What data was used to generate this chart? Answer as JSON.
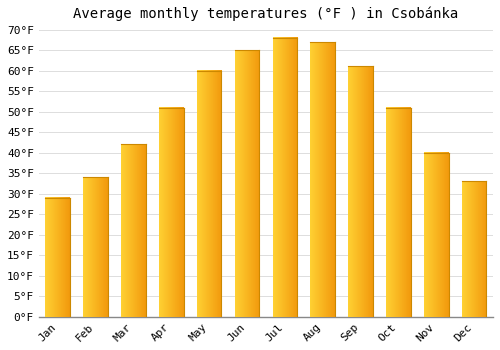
{
  "title": "Average monthly temperatures (°F ) in Csobánka",
  "months": [
    "Jan",
    "Feb",
    "Mar",
    "Apr",
    "May",
    "Jun",
    "Jul",
    "Aug",
    "Sep",
    "Oct",
    "Nov",
    "Dec"
  ],
  "values": [
    29,
    34,
    42,
    51,
    60,
    65,
    68,
    67,
    61,
    51,
    40,
    33
  ],
  "bar_color_main": "#FFAA00",
  "bar_color_light": "#FFD050",
  "bar_color_dark": "#E89000",
  "background_color": "#FFFFFF",
  "plot_bg_color": "#FFFFFF",
  "ylim": [
    0,
    70
  ],
  "ytick_step": 5,
  "grid_color": "#DDDDDD",
  "title_fontsize": 10,
  "tick_fontsize": 8,
  "font_family": "monospace"
}
